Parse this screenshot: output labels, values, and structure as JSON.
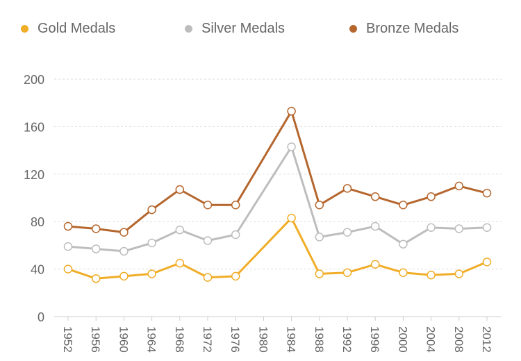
{
  "chart_data": {
    "type": "line",
    "title": "",
    "xlabel": "",
    "ylabel": "",
    "x": [
      "1952",
      "1956",
      "1960",
      "1964",
      "1968",
      "1972",
      "1976",
      "1980",
      "1984",
      "1988",
      "1992",
      "1996",
      "2000",
      "2004",
      "2008",
      "2012"
    ],
    "ylim": [
      0,
      200
    ],
    "yticks": [
      "0",
      "40",
      "80",
      "120",
      "160",
      "200"
    ],
    "grid": "horizontal dashed",
    "legend_position": "top",
    "series": [
      {
        "name": "Gold Medals",
        "color": "#f0ad27",
        "values": [
          40,
          32,
          34,
          36,
          45,
          33,
          34,
          null,
          83,
          36,
          37,
          44,
          37,
          35,
          36,
          46
        ]
      },
      {
        "name": "Silver Medals",
        "color": "#bdbdbd",
        "values": [
          59,
          57,
          55,
          62,
          73,
          64,
          69,
          null,
          143,
          67,
          71,
          76,
          61,
          75,
          74,
          75
        ]
      },
      {
        "name": "Bronze Medals",
        "color": "#b5662d",
        "values": [
          76,
          74,
          71,
          90,
          107,
          94,
          94,
          null,
          173,
          94,
          108,
          101,
          94,
          101,
          110,
          104
        ]
      }
    ]
  }
}
